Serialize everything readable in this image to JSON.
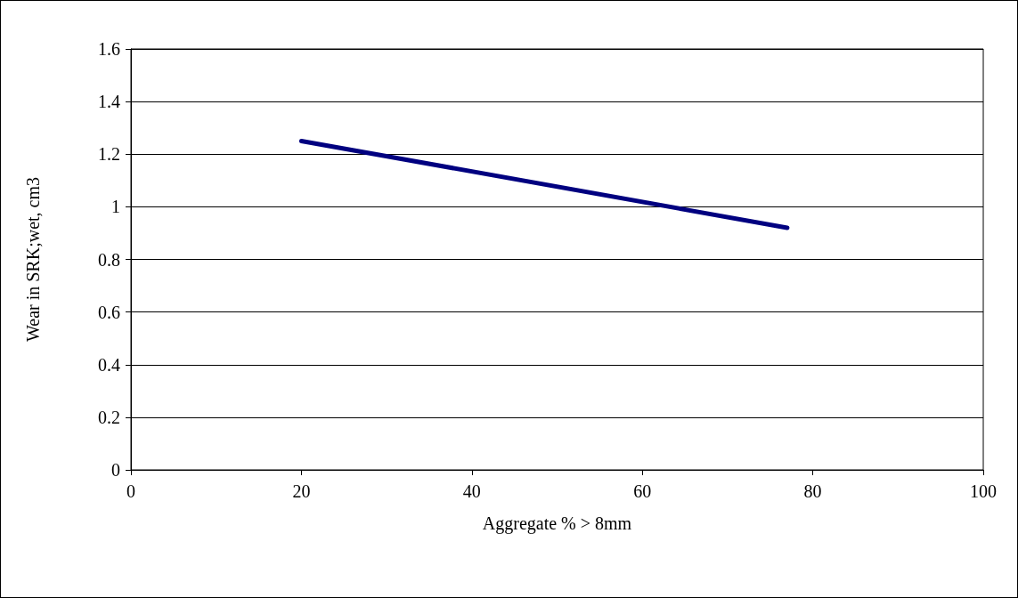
{
  "chart_data": {
    "type": "line",
    "xlabel": "Aggregate % > 8mm",
    "ylabel": "Wear in SRK;wet, cm3",
    "series": [
      {
        "color": "#000080",
        "x": [
          20,
          77
        ],
        "values": [
          1.25,
          0.92
        ]
      }
    ],
    "xlim": [
      0,
      100
    ],
    "xticks": [
      0,
      20,
      40,
      60,
      80,
      100
    ],
    "ylim": [
      0,
      1.6
    ],
    "yticks": [
      0,
      0.2,
      0.4,
      0.6,
      0.8,
      1,
      1.2,
      1.4,
      1.6
    ],
    "grid": "y",
    "marker": "none",
    "line_style": "solid"
  }
}
